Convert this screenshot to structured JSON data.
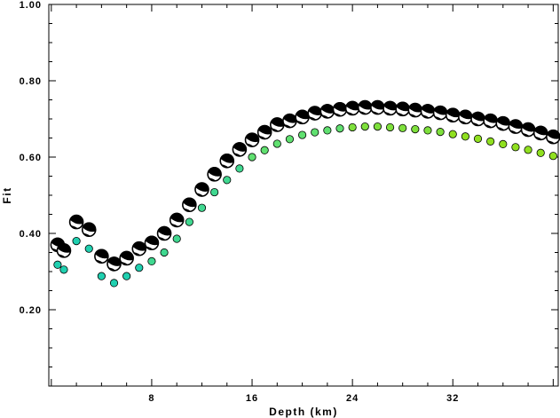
{
  "chart_data": {
    "type": "scatter",
    "title": "",
    "xlabel": "Depth (km)",
    "ylabel": "Fit",
    "xlim": [
      -0.2,
      40.4
    ],
    "ylim": [
      0.0,
      1.0
    ],
    "x_ticks": [
      8,
      16,
      24,
      32
    ],
    "x_tick_labels": [
      "8",
      "16",
      "24",
      "32"
    ],
    "y_ticks": [
      0.2,
      0.4,
      0.6,
      0.8,
      1.0
    ],
    "y_tick_labels": [
      "0.20",
      "0.40",
      "0.60",
      "0.80",
      "1.00"
    ],
    "grid": false,
    "legend": "none",
    "colors": {
      "mechanism_fill": "#000000",
      "small_point_colors": [
        "#20d0b0",
        "#40d890",
        "#60e070",
        "#7ee03c",
        "#90e020"
      ]
    },
    "series": [
      {
        "marker": "focal-mechanism",
        "x": [
          0.5,
          1,
          2,
          3,
          4,
          5,
          6,
          7,
          8,
          9,
          10,
          11,
          12,
          13,
          14,
          15,
          16,
          17,
          18,
          19,
          20,
          21,
          22,
          23,
          24,
          25,
          26,
          27,
          28,
          29,
          30,
          31,
          32,
          33,
          34,
          35,
          36,
          37,
          38,
          39,
          40
        ],
        "y": [
          0.37,
          0.355,
          0.43,
          0.41,
          0.34,
          0.32,
          0.335,
          0.36,
          0.375,
          0.4,
          0.435,
          0.475,
          0.515,
          0.555,
          0.59,
          0.62,
          0.645,
          0.665,
          0.685,
          0.695,
          0.705,
          0.715,
          0.72,
          0.725,
          0.728,
          0.73,
          0.73,
          0.728,
          0.726,
          0.723,
          0.72,
          0.716,
          0.71,
          0.705,
          0.7,
          0.695,
          0.688,
          0.68,
          0.672,
          0.663,
          0.653
        ]
      },
      {
        "marker": "dot",
        "x": [
          0.5,
          1,
          2,
          3,
          4,
          5,
          6,
          7,
          8,
          9,
          10,
          11,
          12,
          13,
          14,
          15,
          16,
          17,
          18,
          19,
          20,
          21,
          22,
          23,
          24,
          25,
          26,
          27,
          28,
          29,
          30,
          31,
          32,
          33,
          34,
          35,
          36,
          37,
          38,
          39,
          40
        ],
        "y": [
          0.318,
          0.305,
          0.38,
          0.36,
          0.288,
          0.27,
          0.288,
          0.31,
          0.327,
          0.35,
          0.386,
          0.43,
          0.467,
          0.508,
          0.54,
          0.57,
          0.6,
          0.618,
          0.635,
          0.647,
          0.658,
          0.665,
          0.67,
          0.675,
          0.678,
          0.68,
          0.68,
          0.678,
          0.676,
          0.673,
          0.67,
          0.666,
          0.66,
          0.654,
          0.648,
          0.641,
          0.634,
          0.626,
          0.619,
          0.611,
          0.603
        ]
      }
    ]
  }
}
